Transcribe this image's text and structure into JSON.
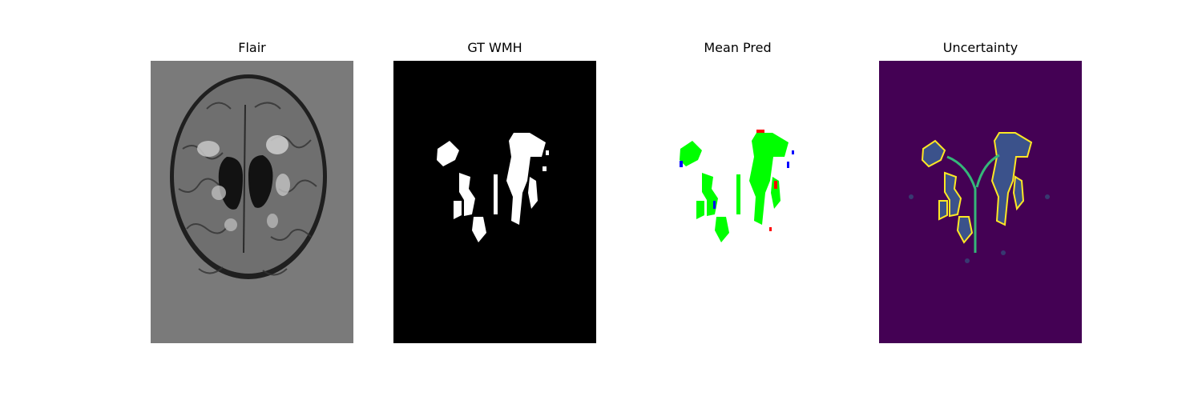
{
  "panels": [
    {
      "title": "Flair"
    },
    {
      "title": "GT WMH"
    },
    {
      "title": "Mean Pred"
    },
    {
      "title": "Uncertainty"
    }
  ],
  "colors": {
    "flair_background": "#7a7a7a",
    "gt_background": "#000000",
    "gt_lesion": "#ffffff",
    "pred_background": "#ffffff",
    "pred_true_positive": "#00ff00",
    "pred_false_positive": "#ff0000",
    "pred_false_negative": "#0000ff",
    "uncertainty_background": "#440154",
    "uncertainty_low": "#3b528b",
    "uncertainty_high": "#fde725"
  }
}
